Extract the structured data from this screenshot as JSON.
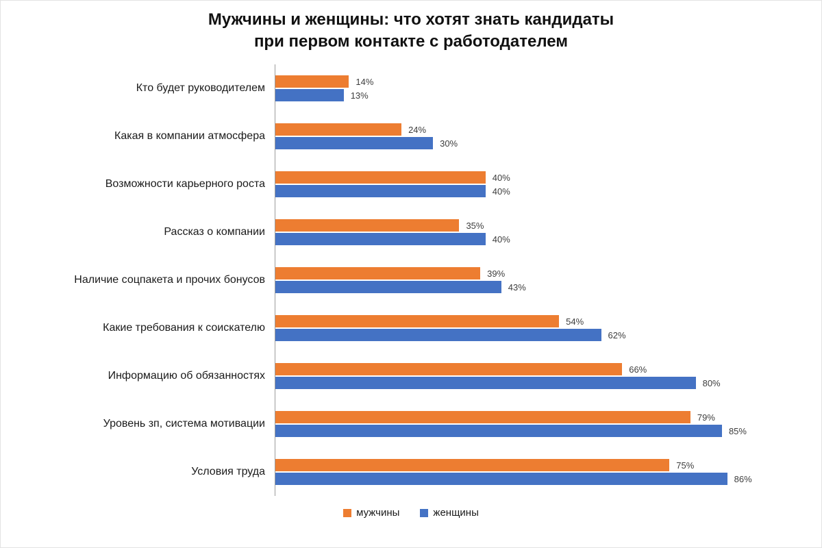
{
  "title": {
    "line1": "Мужчины и женщины: что хотят знать кандидаты",
    "line2": "при первом контакте с работодателем"
  },
  "colors": {
    "men": "#ED7D31",
    "women": "#4472C4",
    "axis": "#9B9B9B"
  },
  "legend": {
    "men_label": "мужчины",
    "women_label": "женщины"
  },
  "chart_data": {
    "type": "bar",
    "orientation": "horizontal",
    "title": "Мужчины и женщины: что хотят знать кандидаты при первом контакте с работодателем",
    "categories": [
      "Кто будет руководителем",
      "Какая в компании атмосфера",
      "Возможности карьерного роста",
      "Рассказ о компании",
      "Наличие соцпакета и прочих бонусов",
      "Какие требования к соискателю",
      "Информацию об обязанностях",
      "Уровень зп, система мотивации",
      "Условия труда"
    ],
    "series": [
      {
        "name": "мужчины",
        "color": "#ED7D31",
        "values": [
          14,
          24,
          40,
          35,
          39,
          54,
          66,
          79,
          75
        ]
      },
      {
        "name": "женщины",
        "color": "#4472C4",
        "values": [
          13,
          30,
          40,
          40,
          43,
          62,
          80,
          85,
          86
        ]
      }
    ],
    "value_suffix": "%",
    "xlim": [
      0,
      100
    ],
    "grid": false,
    "legend_position": "bottom",
    "xlabel": "",
    "ylabel": ""
  }
}
